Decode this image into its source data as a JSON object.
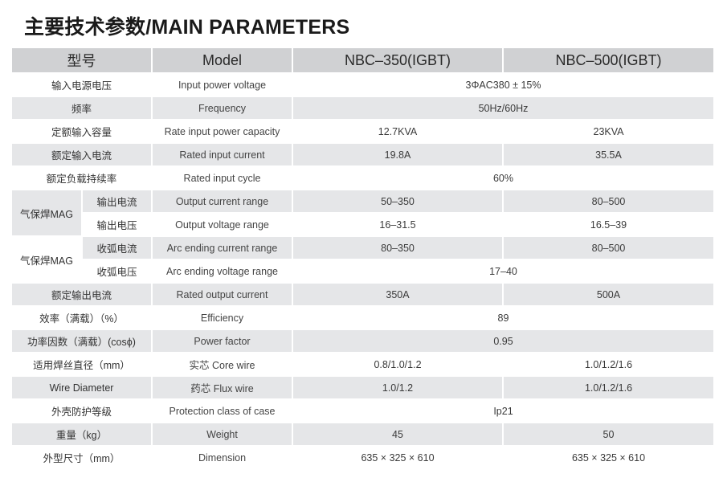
{
  "title": "主要技术参数/MAIN PARAMETERS",
  "header": {
    "col_type": "型号",
    "col_model": "Model",
    "col_a": "NBC–350(IGBT)",
    "col_b": "NBC–500(IGBT)"
  },
  "rows": {
    "input_voltage": {
      "cn": "输入电源电压",
      "en": "Input power voltage",
      "value": "3ΦAC380 ± 15%"
    },
    "frequency": {
      "cn": "频率",
      "en": "Frequency",
      "value": "50Hz/60Hz"
    },
    "capacity": {
      "cn": "定额输入容量",
      "en": "Rate input power capacity",
      "a": "12.7KVA",
      "b": "23KVA"
    },
    "input_current": {
      "cn": "额定输入电流",
      "en": "Rated input current",
      "a": "19.8A",
      "b": "35.5A"
    },
    "input_cycle": {
      "cn": "额定负载持续率",
      "en": "Rated input cycle",
      "value": "60%"
    },
    "mag_group_1": "气保焊MAG",
    "out_current_range": {
      "cn": "输出电流",
      "en": "Output current range",
      "a": "50–350",
      "b": "80–500"
    },
    "out_voltage_range": {
      "cn": "输出电压",
      "en": "Output voltage range",
      "a": "16–31.5",
      "b": "16.5–39"
    },
    "mag_group_2": "气保焊MAG",
    "arc_current": {
      "cn": "收弧电流",
      "en": "Arc ending current range",
      "a": "80–350",
      "b": "80–500"
    },
    "arc_voltage": {
      "cn": "收弧电压",
      "en": "Arc ending voltage range",
      "value": "17–40"
    },
    "output_current": {
      "cn": "额定输出电流",
      "en": "Rated output current",
      "a": "350A",
      "b": "500A"
    },
    "efficiency": {
      "cn": "效率（满载）（%）",
      "en": "Efficiency",
      "value": "89"
    },
    "power_factor": {
      "cn": "功率因数（满载）(cosϕ)",
      "en": "Power factor",
      "value": "0.95"
    },
    "wire_core": {
      "cn": "适用焊丝直径（mm）",
      "en": "实芯 Core wire",
      "a": "0.8/1.0/1.2",
      "b": "1.0/1.2/1.6"
    },
    "wire_flux": {
      "cn": "Wire Diameter",
      "en": "药芯 Flux wire",
      "a": "1.0/1.2",
      "b": "1.0/1.2/1.6"
    },
    "protection": {
      "cn": "外壳防护等级",
      "en": "Protection class of case",
      "value": "Ip21"
    },
    "weight": {
      "cn": "重量（kg）",
      "en": "Weight",
      "a": "45",
      "b": "50"
    },
    "dimension": {
      "cn": "外型尺寸（mm）",
      "en": "Dimension",
      "a": "635 × 325 × 610",
      "b": "635 × 325 × 610"
    }
  }
}
